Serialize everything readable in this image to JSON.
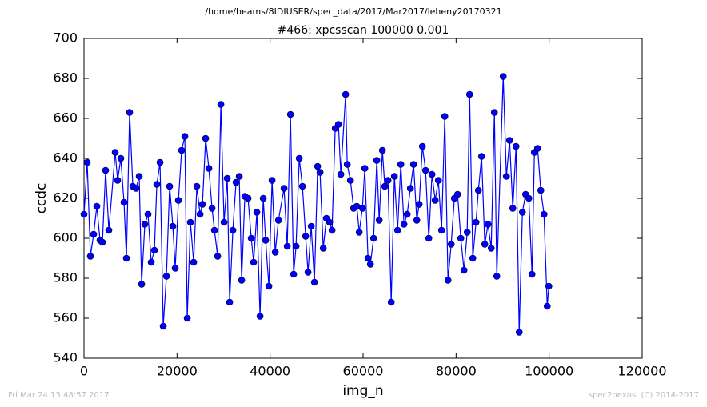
{
  "chart_data": {
    "type": "line",
    "suptitle": "/home/beams/8IDIUSER/spec_data/2017/Mar2017/leheny20170321",
    "title": "#466: xpcsscan 100000 0.001",
    "xlabel": "img_n",
    "ylabel": "ccdc",
    "footer": {
      "left": "Fri Mar 24 13:48:57 2017",
      "right": "spec2nexus, (C) 2014-2017"
    },
    "xlim": [
      0,
      120000
    ],
    "xticks": [
      0,
      20000,
      40000,
      60000,
      80000,
      100000,
      120000
    ],
    "ylim": [
      540,
      700
    ],
    "yticks": [
      540,
      560,
      580,
      600,
      620,
      640,
      660,
      680,
      700
    ],
    "grid": false,
    "x": [
      0,
      688,
      1376,
      2064,
      2752,
      3440,
      3956,
      4644,
      5332,
      6708,
      7224,
      7912,
      8600,
      9116,
      9804,
      10492,
      11180,
      11868,
      12384,
      13072,
      13760,
      14448,
      15136,
      15652,
      16340,
      17028,
      17716,
      18404,
      19092,
      19608,
      20296,
      20984,
      21672,
      22188,
      22876,
      23564,
      24252,
      24940,
      25456,
      26144,
      26832,
      27520,
      28036,
      28724,
      29412,
      30100,
      30788,
      31304,
      31992,
      32680,
      33368,
      33884,
      34572,
      35260,
      35948,
      36464,
      37152,
      37840,
      38528,
      39044,
      39732,
      40420,
      41108,
      41796,
      43000,
      43688,
      44376,
      45064,
      45580,
      46268,
      46956,
      47644,
      48160,
      48848,
      49536,
      50224,
      50740,
      51428,
      52116,
      52804,
      53320,
      54008,
      54696,
      55212,
      56244,
      56588,
      57276,
      57964,
      58652,
      59168,
      59856,
      60372,
      61060,
      61576,
      62264,
      62952,
      63468,
      64156,
      64672,
      65360,
      66048,
      66736,
      67424,
      68112,
      68800,
      69488,
      70176,
      70864,
      71552,
      72068,
      72756,
      73444,
      74132,
      74820,
      75508,
      76196,
      76884,
      77572,
      78260,
      78948,
      79636,
      80324,
      81012,
      81700,
      82388,
      82904,
      83592,
      84280,
      84796,
      85484,
      86172,
      86860,
      87548,
      88236,
      88752,
      90128,
      90816,
      91504,
      92192,
      92880,
      93568,
      94256,
      94944,
      95632,
      96320,
      96836,
      97524,
      98212,
      98900,
      99588,
      99932
    ],
    "series": [
      {
        "name": "ccdc",
        "color": "#0000ff",
        "values": [
          612,
          638,
          591,
          602,
          616,
          599,
          598,
          634,
          604,
          643,
          629,
          640,
          618,
          590,
          663,
          626,
          625,
          631,
          577,
          607,
          612,
          588,
          594,
          627,
          638,
          556,
          581,
          626,
          606,
          585,
          619,
          644,
          651,
          560,
          608,
          588,
          626,
          612,
          617,
          650,
          635,
          615,
          604,
          591,
          667,
          608,
          630,
          568,
          604,
          628,
          631,
          579,
          621,
          620,
          600,
          588,
          613,
          561,
          620,
          599,
          576,
          629,
          593,
          609,
          625,
          596,
          662,
          582,
          596,
          640,
          626,
          601,
          583,
          606,
          578,
          636,
          633,
          595,
          610,
          608,
          604,
          655,
          657,
          632,
          672,
          637,
          629,
          615,
          616,
          603,
          615,
          635,
          590,
          587,
          600,
          639,
          609,
          644,
          626,
          629,
          568,
          631,
          604,
          637,
          607,
          612,
          625,
          637,
          609,
          617,
          646,
          634,
          600,
          632,
          619,
          629,
          604,
          661,
          579,
          597,
          620,
          622,
          600,
          584,
          603,
          672,
          590,
          608,
          624,
          641,
          597,
          607,
          595,
          663,
          581,
          681,
          631,
          649,
          615,
          646,
          553,
          613,
          622,
          620,
          582,
          643,
          645,
          624,
          612,
          566,
          576
        ]
      }
    ]
  }
}
